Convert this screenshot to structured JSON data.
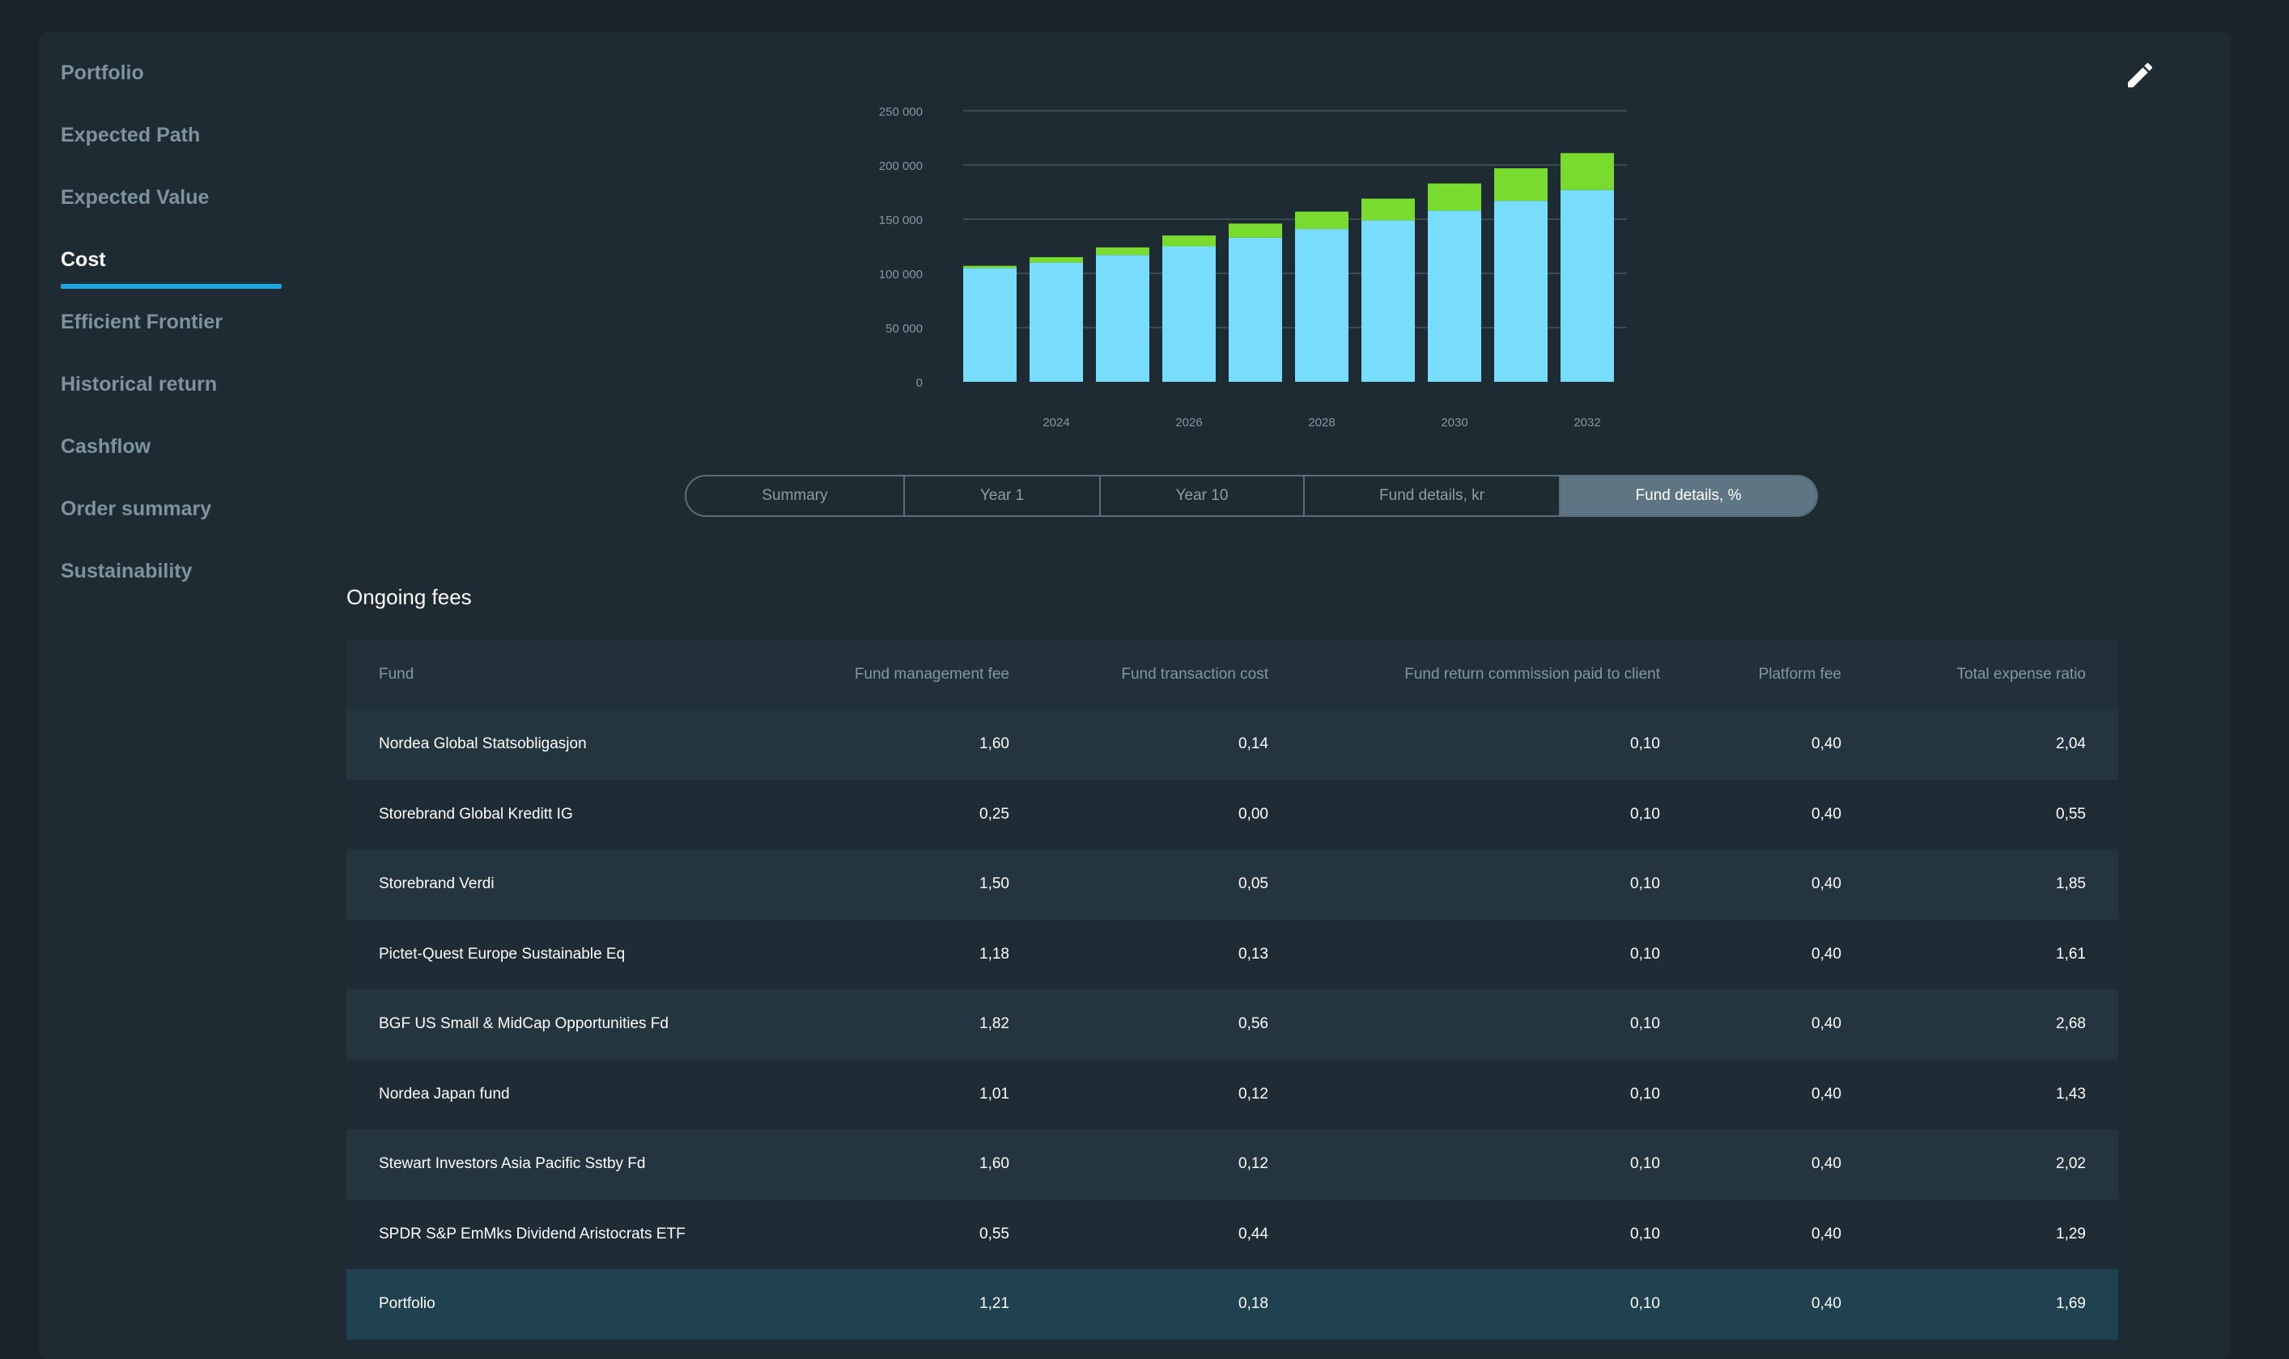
{
  "sidebar": {
    "items": [
      {
        "label": "Portfolio",
        "active": false
      },
      {
        "label": "Expected Path",
        "active": false
      },
      {
        "label": "Expected Value",
        "active": false
      },
      {
        "label": "Cost",
        "active": true
      },
      {
        "label": "Efficient Frontier",
        "active": false
      },
      {
        "label": "Historical return",
        "active": false
      },
      {
        "label": "Cashflow",
        "active": false
      },
      {
        "label": "Order summary",
        "active": false
      },
      {
        "label": "Sustainability",
        "active": false
      }
    ]
  },
  "header": {
    "edit_icon": "pencil-icon"
  },
  "chart_data": {
    "type": "bar",
    "stacked": true,
    "categories": [
      "2023",
      "2024",
      "2025",
      "2026",
      "2027",
      "2028",
      "2029",
      "2030",
      "2031",
      "2032"
    ],
    "x_tick_labels": [
      "2024",
      "2026",
      "2028",
      "2030",
      "2032"
    ],
    "y_tick_labels": [
      "0",
      "50 000",
      "100 000",
      "150 000",
      "200 000",
      "250 000"
    ],
    "ylim": [
      0,
      250000
    ],
    "grid": true,
    "series": [
      {
        "color": "#78dcfd",
        "values": [
          105000,
          110000,
          117000,
          125000,
          133000,
          141000,
          149000,
          158000,
          167000,
          177000
        ]
      },
      {
        "color": "#78db2d",
        "values": [
          2000,
          5000,
          7000,
          10000,
          13000,
          16000,
          20000,
          25000,
          30000,
          34000
        ]
      }
    ]
  },
  "tabs": [
    {
      "label": "Summary",
      "active": false
    },
    {
      "label": "Year 1",
      "active": false
    },
    {
      "label": "Year 10",
      "active": false
    },
    {
      "label": "Fund details, kr",
      "active": false
    },
    {
      "label": "Fund details, %",
      "active": true
    }
  ],
  "fees": {
    "title": "Ongoing fees",
    "columns": [
      "Fund",
      "Fund management fee",
      "Fund transaction cost",
      "Fund return commission paid to client",
      "Platform fee",
      "Total expense ratio"
    ],
    "rows": [
      [
        "Nordea Global Statsobligasjon",
        "1,60",
        "0,14",
        "0,10",
        "0,40",
        "2,04"
      ],
      [
        "Storebrand Global Kreditt IG",
        "0,25",
        "0,00",
        "0,10",
        "0,40",
        "0,55"
      ],
      [
        "Storebrand Verdi",
        "1,50",
        "0,05",
        "0,10",
        "0,40",
        "1,85"
      ],
      [
        "Pictet-Quest Europe Sustainable Eq",
        "1,18",
        "0,13",
        "0,10",
        "0,40",
        "1,61"
      ],
      [
        "BGF US Small & MidCap Opportunities Fd",
        "1,82",
        "0,56",
        "0,10",
        "0,40",
        "2,68"
      ],
      [
        "Nordea Japan fund",
        "1,01",
        "0,12",
        "0,10",
        "0,40",
        "1,43"
      ],
      [
        "Stewart Investors Asia Pacific Sstby Fd",
        "1,60",
        "0,12",
        "0,10",
        "0,40",
        "2,02"
      ],
      [
        "SPDR S&P EmMks Dividend Aristocrats ETF",
        "0,55",
        "0,44",
        "0,10",
        "0,40",
        "1,29"
      ]
    ],
    "total": [
      "Portfolio",
      "1,21",
      "0,18",
      "0,10",
      "0,40",
      "1,69"
    ]
  }
}
